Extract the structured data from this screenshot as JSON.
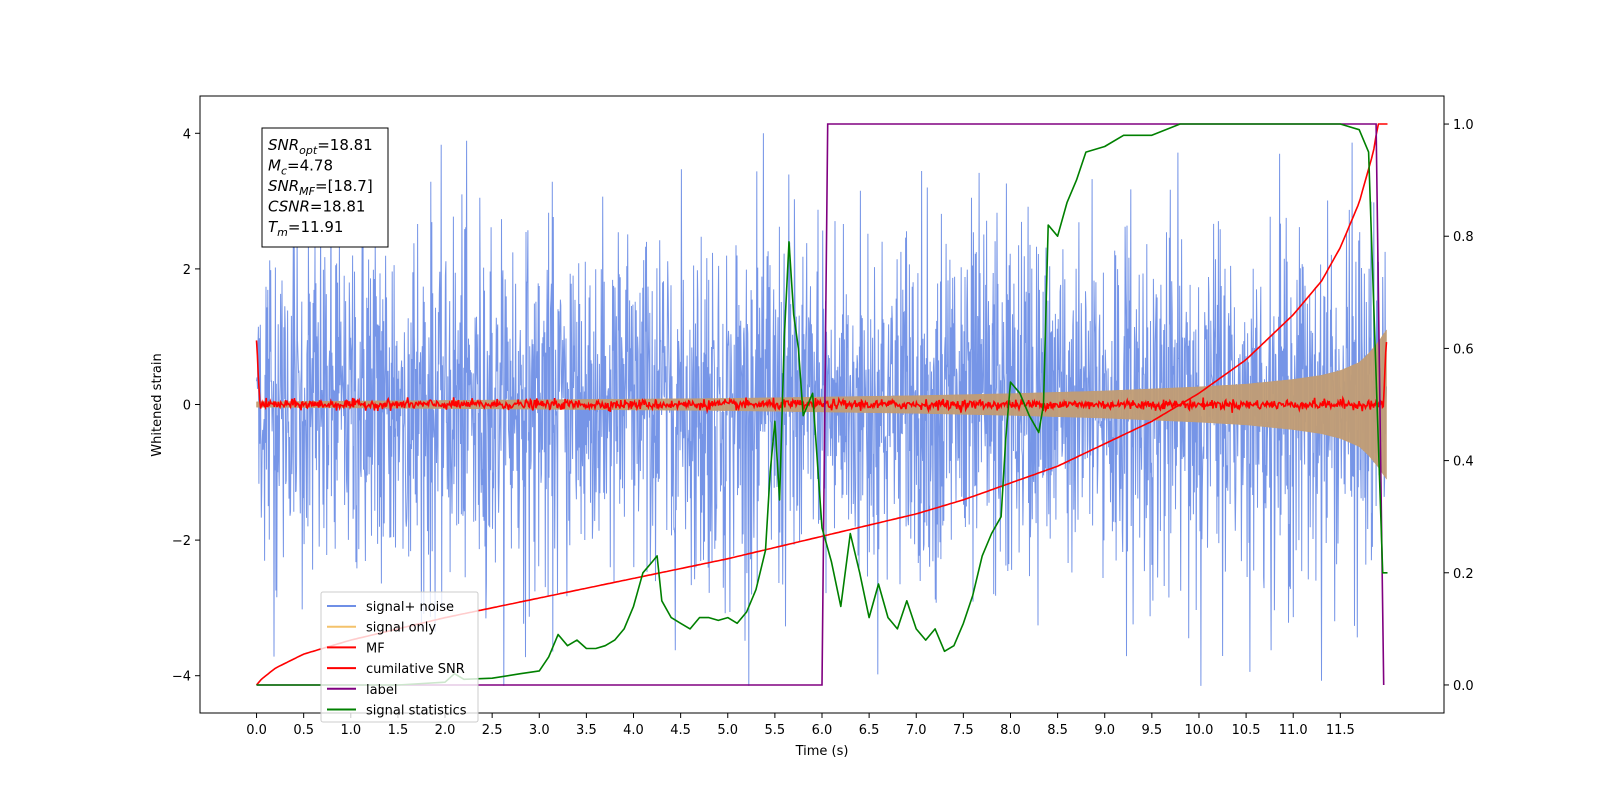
{
  "chart_data": {
    "type": "line",
    "xlabel": "Time (s)",
    "ylabel": "Whitened strain",
    "xlim": [
      -0.6,
      12.6
    ],
    "ylim": [
      -4.55,
      4.55
    ],
    "y2lim": [
      -0.05,
      1.05
    ],
    "x_ticks": [
      0.0,
      0.5,
      1.0,
      1.5,
      2.0,
      2.5,
      3.0,
      3.5,
      4.0,
      4.5,
      5.0,
      5.5,
      6.0,
      6.5,
      7.0,
      7.5,
      8.0,
      8.5,
      9.0,
      9.5,
      10.0,
      10.5,
      11.0,
      11.5
    ],
    "x_tick_labels": [
      "0.0",
      "0.5",
      "1.0",
      "1.5",
      "2.0",
      "2.5",
      "3.0",
      "3.5",
      "4.0",
      "4.5",
      "5.0",
      "5.5",
      "6.0",
      "6.5",
      "7.0",
      "7.5",
      "8.0",
      "8.5",
      "9.0",
      "9.5",
      "10.0",
      "10.5",
      "11.0",
      "11.5"
    ],
    "y_ticks": [
      -4,
      -2,
      0,
      2,
      4
    ],
    "y_tick_labels": [
      "−4",
      "−2",
      "0",
      "2",
      "4"
    ],
    "y2_ticks": [
      0.0,
      0.2,
      0.4,
      0.6,
      0.8,
      1.0
    ],
    "y2_tick_labels": [
      "0.0",
      "0.2",
      "0.4",
      "0.6",
      "0.8",
      "1.0"
    ],
    "grid": false,
    "legend_position": "lower-left",
    "annotation": [
      {
        "base": "SNR",
        "sub": "opt",
        "rest": "=18.81"
      },
      {
        "base": "M",
        "sub": "c",
        "rest": "=4.78"
      },
      {
        "base": "SNR",
        "sub": "MF",
        "rest": "=[18.7]"
      },
      {
        "base": "CSNR",
        "sub": "",
        "rest": "=18.81"
      },
      {
        "base": "T",
        "sub": "m",
        "rest": "=11.91"
      }
    ],
    "series": [
      {
        "name": "signal+ noise",
        "color": "#6f8fe6",
        "axis": "left",
        "style": "noise",
        "x_range": [
          0.0,
          11.99
        ],
        "envelope_upper": 2.2,
        "envelope_lower": -2.2,
        "peak_max": 4.0,
        "peak_min": -4.15
      },
      {
        "name": "signal only",
        "color": "#f4c26b",
        "axis": "left",
        "style": "chirp",
        "x": [
          0.0,
          1.0,
          2.0,
          3.0,
          4.0,
          5.0,
          6.0,
          7.0,
          8.0,
          9.0,
          10.0,
          10.5,
          11.0,
          11.3,
          11.5,
          11.7,
          11.8,
          11.9,
          11.99
        ],
        "amplitude": [
          0.04,
          0.05,
          0.06,
          0.07,
          0.08,
          0.09,
          0.11,
          0.13,
          0.16,
          0.2,
          0.26,
          0.3,
          0.37,
          0.43,
          0.5,
          0.62,
          0.75,
          0.92,
          1.1
        ]
      },
      {
        "name": "MF",
        "color": "#ff0000",
        "axis": "left",
        "style": "noisy-flat",
        "x_range": [
          0.0,
          11.99
        ],
        "start_value": 1.0,
        "end_value": 0.95,
        "noise_amplitude": 0.08
      },
      {
        "name": "cumilative SNR",
        "color": "#ff0000",
        "axis": "right",
        "x": [
          0.0,
          0.05,
          0.2,
          0.5,
          1.0,
          1.5,
          2.0,
          3.0,
          4.0,
          5.0,
          6.0,
          6.5,
          7.0,
          7.5,
          8.0,
          8.5,
          9.0,
          9.5,
          10.0,
          10.5,
          11.0,
          11.3,
          11.5,
          11.7,
          11.85,
          11.9,
          12.0
        ],
        "y": [
          0.0,
          0.01,
          0.03,
          0.055,
          0.08,
          0.1,
          0.12,
          0.155,
          0.19,
          0.225,
          0.265,
          0.285,
          0.305,
          0.33,
          0.36,
          0.39,
          0.43,
          0.47,
          0.52,
          0.58,
          0.66,
          0.72,
          0.78,
          0.86,
          0.95,
          1.0,
          1.0
        ]
      },
      {
        "name": "label",
        "color": "#800080",
        "axis": "right",
        "x": [
          0.0,
          6.0,
          6.06,
          11.88,
          11.96
        ],
        "y": [
          0.0,
          0.0,
          1.0,
          1.0,
          0.0
        ]
      },
      {
        "name": "signal statistics",
        "color": "#008000",
        "axis": "right",
        "x": [
          0.0,
          0.5,
          1.0,
          1.5,
          2.0,
          2.1,
          2.2,
          2.5,
          2.8,
          3.0,
          3.1,
          3.2,
          3.3,
          3.4,
          3.5,
          3.6,
          3.7,
          3.8,
          3.9,
          4.0,
          4.1,
          4.2,
          4.25,
          4.3,
          4.4,
          4.5,
          4.6,
          4.7,
          4.8,
          4.9,
          5.0,
          5.1,
          5.2,
          5.3,
          5.4,
          5.45,
          5.5,
          5.55,
          5.6,
          5.65,
          5.7,
          5.75,
          5.8,
          5.9,
          6.0,
          6.1,
          6.2,
          6.3,
          6.4,
          6.5,
          6.6,
          6.7,
          6.8,
          6.9,
          7.0,
          7.1,
          7.2,
          7.3,
          7.4,
          7.5,
          7.6,
          7.7,
          7.8,
          7.9,
          7.95,
          8.0,
          8.1,
          8.2,
          8.3,
          8.35,
          8.4,
          8.5,
          8.6,
          8.7,
          8.8,
          9.0,
          9.2,
          9.5,
          9.8,
          10.0,
          11.0,
          11.5,
          11.7,
          11.8,
          11.85,
          11.9,
          11.95,
          12.0
        ],
        "y": [
          0.0,
          0.0,
          0.0,
          0.0,
          0.005,
          0.02,
          0.01,
          0.012,
          0.02,
          0.025,
          0.05,
          0.09,
          0.07,
          0.08,
          0.065,
          0.065,
          0.07,
          0.08,
          0.1,
          0.14,
          0.2,
          0.22,
          0.23,
          0.15,
          0.12,
          0.11,
          0.1,
          0.12,
          0.12,
          0.115,
          0.12,
          0.11,
          0.13,
          0.17,
          0.24,
          0.38,
          0.47,
          0.33,
          0.62,
          0.79,
          0.66,
          0.6,
          0.48,
          0.52,
          0.28,
          0.22,
          0.14,
          0.27,
          0.2,
          0.12,
          0.18,
          0.12,
          0.1,
          0.15,
          0.1,
          0.08,
          0.1,
          0.06,
          0.07,
          0.11,
          0.16,
          0.23,
          0.27,
          0.3,
          0.44,
          0.54,
          0.52,
          0.48,
          0.45,
          0.5,
          0.82,
          0.8,
          0.86,
          0.9,
          0.95,
          0.96,
          0.98,
          0.98,
          1.0,
          1.0,
          1.0,
          1.0,
          0.99,
          0.95,
          0.7,
          0.45,
          0.2,
          0.2
        ]
      }
    ]
  }
}
